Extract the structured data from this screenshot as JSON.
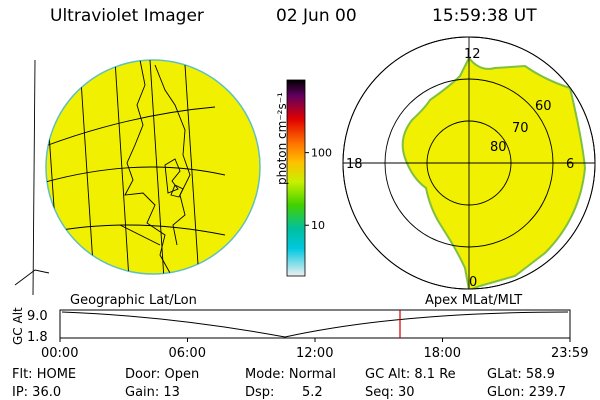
{
  "header": {
    "title": "Ultraviolet Imager",
    "date": "02 Jun 00",
    "time": "15:59:38 UT"
  },
  "colorbar": {
    "unit": "photon cm⁻²s⁻¹",
    "ticks": [
      {
        "label": "100",
        "value": 100
      },
      {
        "label": "10",
        "value": 10
      }
    ]
  },
  "geo_panel": {
    "label": "Geographic Lat/Lon",
    "fill_color": "#f0f000"
  },
  "polar_panel": {
    "label": "Apex MLat/MLT",
    "fill_color": "#f0f000",
    "mlt_labels": [
      "12",
      "18",
      "6",
      "0"
    ],
    "lat_labels": [
      "60",
      "70",
      "80"
    ]
  },
  "timeline": {
    "axis_label": "GC Alt",
    "y_ticks": [
      "9.0",
      "1.8"
    ],
    "x_ticks": [
      "00:00",
      "06:00",
      "12:00",
      "18:00",
      "23:59"
    ],
    "marker_time": "15:59",
    "marker_color": "#d00000"
  },
  "status": {
    "flt": "Flt: HOME",
    "ip": "IP: 36.0",
    "door": "Door: Open",
    "gain": "Gain: 13",
    "mode": "Mode: Normal",
    "dsp_label": "Dsp:",
    "dsp_value": "5.2",
    "gc_alt": "GC Alt: 8.1 Re",
    "seq": "Seq: 30",
    "glat": "GLat:  58.9",
    "glon": "GLon: 239.7"
  }
}
